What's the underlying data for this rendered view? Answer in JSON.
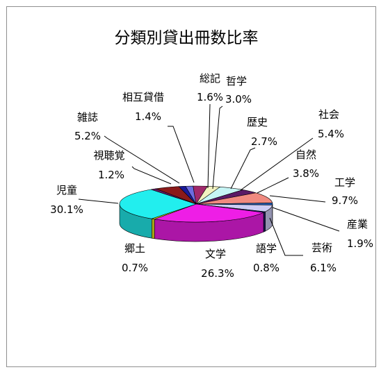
{
  "chart_data": {
    "type": "pie",
    "title": "分類別貸出冊数比率",
    "three_d": true,
    "legend": "none",
    "slices": [
      {
        "name": "総記",
        "percent_label": "1.6%",
        "value": 1.6,
        "color": "#6c6ce0"
      },
      {
        "name": "哲学",
        "percent_label": "3.0%",
        "value": 3.0,
        "color": "#a0296b"
      },
      {
        "name": "歴史",
        "percent_label": "2.7%",
        "value": 2.7,
        "color": "#f2f2c0"
      },
      {
        "name": "社会",
        "percent_label": "5.4%",
        "value": 5.4,
        "color": "#c6f5f5"
      },
      {
        "name": "自然",
        "percent_label": "3.8%",
        "value": 3.8,
        "color": "#5a1a66"
      },
      {
        "name": "工学",
        "percent_label": "9.7%",
        "value": 9.7,
        "color": "#f08a80"
      },
      {
        "name": "産業",
        "percent_label": "1.9%",
        "value": 1.9,
        "color": "#1f5bb4"
      },
      {
        "name": "芸術",
        "percent_label": "6.1%",
        "value": 6.1,
        "color": "#ccccf5"
      },
      {
        "name": "語学",
        "percent_label": "0.8%",
        "value": 0.8,
        "color": "#1c1c6e"
      },
      {
        "name": "文学",
        "percent_label": "26.3%",
        "value": 26.3,
        "color": "#ee1ee6"
      },
      {
        "name": "郷土",
        "percent_label": "0.7%",
        "value": 0.7,
        "color": "#e6e61e"
      },
      {
        "name": "児童",
        "percent_label": "30.1%",
        "value": 30.1,
        "color": "#22eeee"
      },
      {
        "name": "視聴覚",
        "percent_label": "1.2%",
        "value": 1.2,
        "color": "#661a66"
      },
      {
        "name": "雑誌",
        "percent_label": "5.2%",
        "value": 5.2,
        "color": "#8a1a1a"
      },
      {
        "name": "相互貸借",
        "percent_label": "1.4%",
        "value": 1.4,
        "color": "#1a1a9a"
      }
    ]
  }
}
